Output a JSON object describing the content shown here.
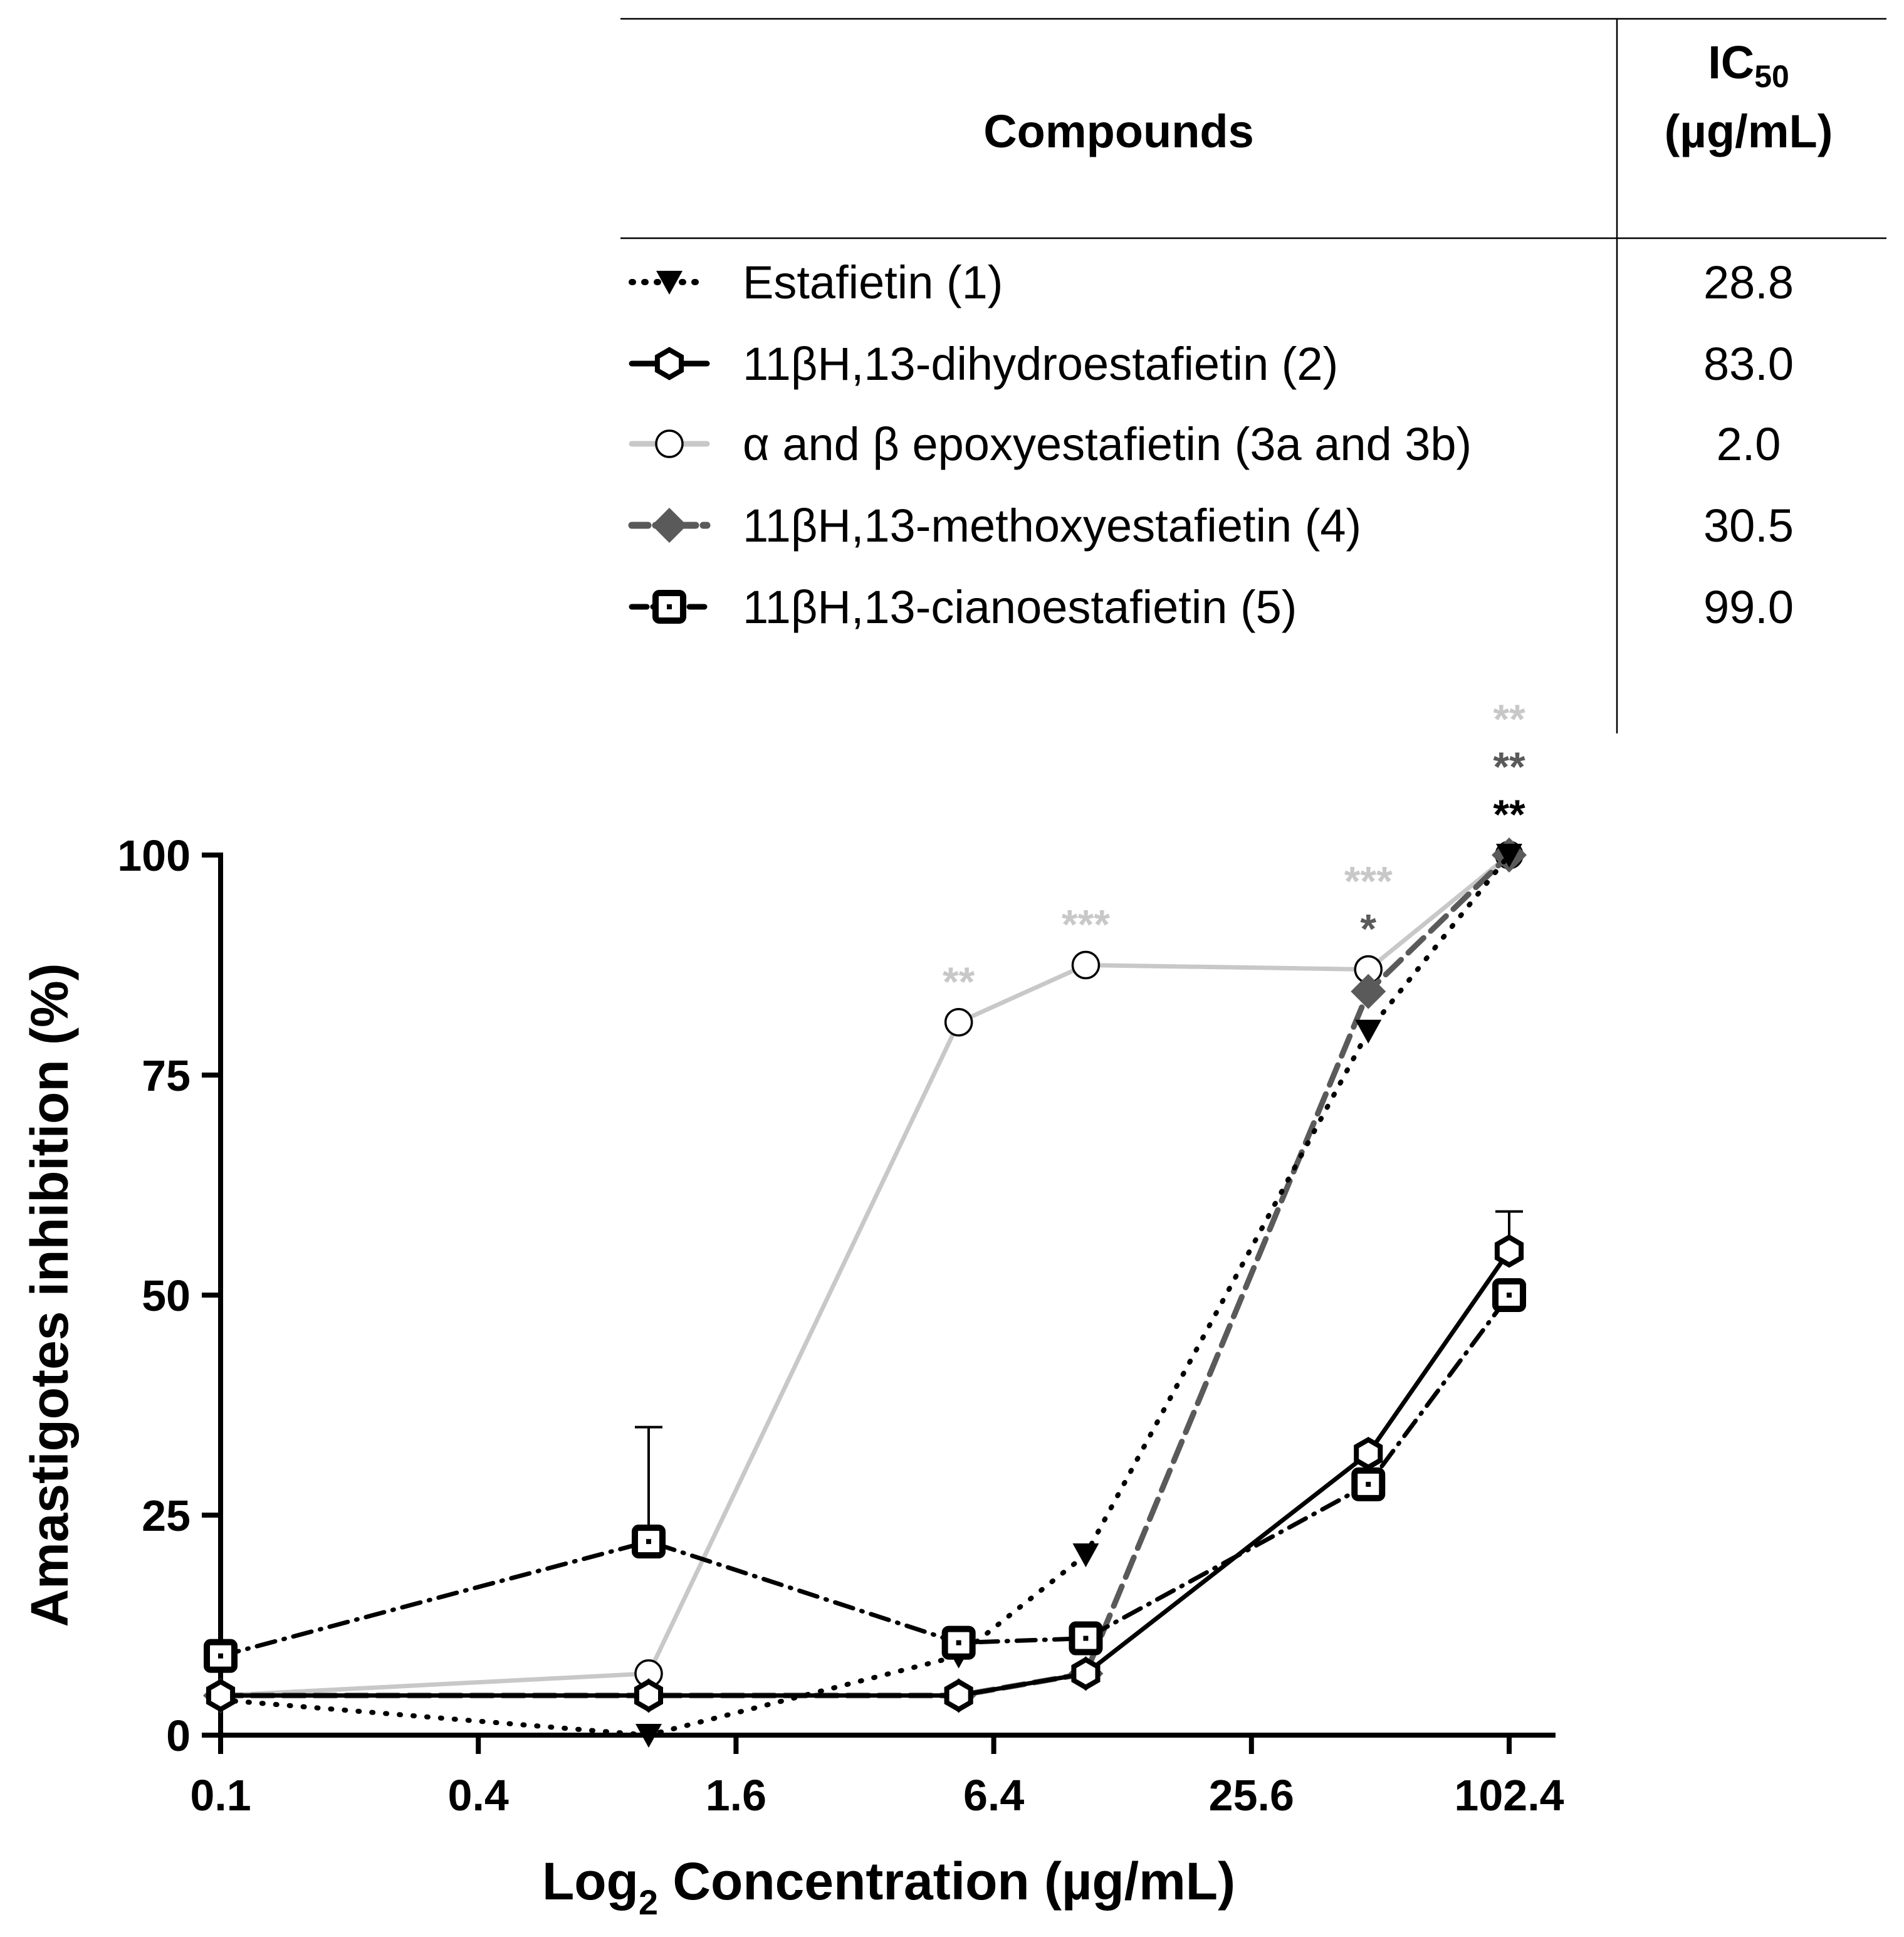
{
  "chart_data": {
    "type": "line",
    "title": "",
    "xlabel": "Log",
    "xlabel_sub": "2",
    "xlabel_rest": " Concentration (µg/mL)",
    "ylabel": "Amastigotes inhibition (%)",
    "x_scale": "log2",
    "xlim": [
      0.1,
      102.4
    ],
    "ylim": [
      0,
      100
    ],
    "x_ticks": [
      0.1,
      0.4,
      1.6,
      6.4,
      25.6,
      102.4
    ],
    "x_tick_labels": [
      "0.1",
      "0.4",
      "1.6",
      "6.4",
      "25.6",
      "102.4"
    ],
    "y_ticks": [
      0,
      25,
      50,
      75,
      100
    ],
    "y_tick_labels": [
      "0",
      "25",
      "50",
      "75",
      "100"
    ],
    "x": [
      0.1,
      1.0,
      5.3,
      10.5,
      48.0,
      102.4
    ],
    "legend": {
      "header_compounds": "Compounds",
      "header_ic50": "IC",
      "header_ic50_sub": "50",
      "header_unit": "(µg/mL)"
    },
    "series": [
      {
        "name": "Estafietin (1)",
        "ic50": "28.8",
        "color": "#000000",
        "style": "dotted",
        "marker": "triangle-down",
        "values": [
          4,
          0,
          9,
          20.5,
          80,
          100
        ]
      },
      {
        "name": "11βH,13-dihydroestafietin (2)",
        "ic50": "83.0",
        "color": "#000000",
        "style": "solid",
        "marker": "hexagon-open",
        "values": [
          4.5,
          4.5,
          4.5,
          7,
          32,
          55
        ],
        "error_up": [
          0,
          0,
          0,
          0,
          0,
          4.5
        ]
      },
      {
        "name": "α and β epoxyestafietin (3a and 3b)",
        "ic50": "2.0",
        "color": "#c8c8c8",
        "style": "solid",
        "marker": "circle-open",
        "values": [
          4.5,
          7,
          81,
          87.5,
          87,
          100
        ]
      },
      {
        "name": "11βH,13-methoxyestafietin (4)",
        "ic50": "30.5",
        "color": "#5a5a5a",
        "style": "dashed",
        "marker": "diamond",
        "values": [
          4.5,
          4.5,
          4.5,
          7,
          84.5,
          100
        ]
      },
      {
        "name": "11βH,13-cianoestafietin (5)",
        "ic50": "99.0",
        "color": "#000000",
        "style": "dashdot",
        "marker": "square-open",
        "values": [
          9,
          22,
          10.5,
          11,
          28.5,
          50
        ],
        "error_up": [
          0,
          13,
          0,
          0,
          0,
          0
        ]
      }
    ],
    "annotations": [
      {
        "text": "**",
        "x": 5.3,
        "y_anchor": 81,
        "color": "#c8c8c8",
        "stack": 1
      },
      {
        "text": "***",
        "x": 10.5,
        "y_anchor": 87.5,
        "color": "#c8c8c8",
        "stack": 1
      },
      {
        "text": "*",
        "x": 48.0,
        "y_anchor": 87,
        "color": "#5a5a5a",
        "stack": 1
      },
      {
        "text": "***",
        "x": 48.0,
        "y_anchor": 87,
        "color": "#c8c8c8",
        "stack": 2
      },
      {
        "text": "**",
        "x": 102.4,
        "y_anchor": 100,
        "color": "#000000",
        "stack": 1
      },
      {
        "text": "**",
        "x": 102.4,
        "y_anchor": 100,
        "color": "#5a5a5a",
        "stack": 2
      },
      {
        "text": "**",
        "x": 102.4,
        "y_anchor": 100,
        "color": "#c8c8c8",
        "stack": 3
      }
    ]
  }
}
